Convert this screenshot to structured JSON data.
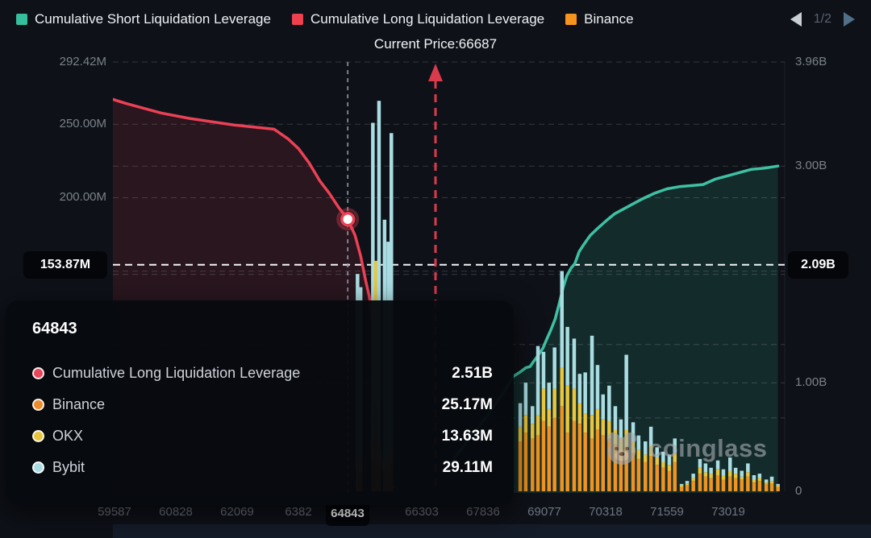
{
  "header": {
    "legend": [
      {
        "label": "Cumulative Short Liquidation Leverage",
        "color": "#35bd9c"
      },
      {
        "label": "Cumulative Long Liquidation Leverage",
        "color": "#ee404f"
      },
      {
        "label": "Binance",
        "color": "#f7941d"
      }
    ],
    "pagination": {
      "page": "1/2"
    },
    "current_price_label": "Current Price:66687"
  },
  "watermark": {
    "text": "coinglass"
  },
  "tooltip": {
    "title": "64843",
    "rows": [
      {
        "label": "Cumulative Long Liquidation Leverage",
        "value": "2.51B",
        "color": "#e8465a"
      },
      {
        "label": "Binance",
        "value": "25.17M",
        "color": "#ea8c2c"
      },
      {
        "label": "OKX",
        "value": "13.63M",
        "color": "#e7c53f"
      },
      {
        "label": "Bybit",
        "value": "29.11M",
        "color": "#a9dde2"
      }
    ]
  },
  "colors": {
    "background": "#0e1118",
    "grid": "rgba(255,255,255,0.16)",
    "price_line_white": "#f1f4f6",
    "hover_line": "#9aa2ab",
    "arrow_red": "#d93a4c",
    "pill_bg": "#04060a",
    "axis_text": "#7b8189"
  },
  "chart_data": {
    "type": "mixed: stacked bars (per-exchange liquidation leverage, left axis M) + cumulative lines (right axis B)",
    "x_ticks": [
      {
        "t": "59587"
      },
      {
        "t": "60828"
      },
      {
        "t": "62069"
      },
      {
        "t": "6382"
      },
      {
        "t": "64843",
        "hl": true
      },
      {
        "t": "66303"
      },
      {
        "t": "67836"
      },
      {
        "t": "69077"
      },
      {
        "t": "70318"
      },
      {
        "t": "71559"
      },
      {
        "t": "73019"
      }
    ],
    "left_axis": {
      "unit": "M",
      "max": 292.42,
      "labels": [
        {
          "text": "292.42M",
          "value": 292.42
        },
        {
          "text": "250.00M",
          "value": 250
        },
        {
          "text": "200.00M",
          "value": 200
        }
      ],
      "pill": {
        "text": "153.87M",
        "value": 153.87
      }
    },
    "right_axis": {
      "unit": "B",
      "max": 3.96,
      "labels": [
        {
          "text": "3.96B",
          "value": 3.96
        },
        {
          "text": "3.00B",
          "value": 3.0
        },
        {
          "text": "1.00B",
          "value": 1.0
        },
        {
          "text": "0",
          "value": 0
        }
      ],
      "pill": {
        "text": "2.09B",
        "value": 2.09
      }
    },
    "left_grid": [
      250,
      200,
      150,
      100,
      50
    ],
    "right_grid": [
      3.96,
      3.0,
      2.0,
      1.0
    ],
    "price_line": {
      "value_b": 2.09
    },
    "current_price": {
      "xi": 5.23
    },
    "hover": {
      "xi": 3.8,
      "label": "64843",
      "long_value_b": 2.51
    },
    "series": [
      {
        "name": "Cumulative Long Liquidation Leverage",
        "axis": "right",
        "color": "#ec4155",
        "fill": "rgba(236,65,85,0.12)",
        "points": [
          [
            -0.05,
            3.62
          ],
          [
            0.17,
            3.58
          ],
          [
            0.76,
            3.49
          ],
          [
            1.22,
            3.44
          ],
          [
            1.94,
            3.38
          ],
          [
            2.6,
            3.34
          ],
          [
            2.83,
            3.25
          ],
          [
            3.0,
            3.16
          ],
          [
            3.17,
            3.03
          ],
          [
            3.35,
            2.86
          ],
          [
            3.5,
            2.75
          ],
          [
            3.65,
            2.62
          ],
          [
            3.8,
            2.51
          ],
          [
            3.92,
            2.36
          ],
          [
            4.01,
            2.17
          ],
          [
            4.09,
            1.95
          ],
          [
            4.15,
            1.8
          ],
          [
            4.19,
            1.63
          ],
          [
            4.24,
            0.97
          ],
          [
            4.31,
            0.37
          ],
          [
            4.42,
            0.11
          ],
          [
            4.55,
            0.04
          ]
        ]
      },
      {
        "name": "Cumulative Short Liquidation Leverage",
        "axis": "right",
        "color": "#3ec1a2",
        "fill": "rgba(62,193,162,0.15)",
        "points": [
          [
            5.5,
            0.28
          ],
          [
            5.8,
            0.5
          ],
          [
            6.1,
            0.72
          ],
          [
            6.35,
            0.92
          ],
          [
            6.5,
            1.06
          ],
          [
            6.61,
            1.1
          ],
          [
            6.7,
            1.14
          ],
          [
            6.77,
            1.15
          ],
          [
            6.83,
            1.2
          ],
          [
            6.91,
            1.26
          ],
          [
            6.98,
            1.32
          ],
          [
            7.04,
            1.4
          ],
          [
            7.11,
            1.49
          ],
          [
            7.18,
            1.59
          ],
          [
            7.24,
            1.72
          ],
          [
            7.31,
            1.88
          ],
          [
            7.37,
            1.99
          ],
          [
            7.44,
            2.06
          ],
          [
            7.5,
            2.1
          ],
          [
            7.57,
            2.21
          ],
          [
            7.65,
            2.28
          ],
          [
            7.75,
            2.36
          ],
          [
            7.88,
            2.43
          ],
          [
            8.02,
            2.5
          ],
          [
            8.15,
            2.56
          ],
          [
            8.28,
            2.6
          ],
          [
            8.41,
            2.64
          ],
          [
            8.61,
            2.7
          ],
          [
            8.8,
            2.75
          ],
          [
            9.0,
            2.79
          ],
          [
            9.2,
            2.81
          ],
          [
            9.41,
            2.82
          ],
          [
            9.59,
            2.83
          ],
          [
            9.79,
            2.88
          ],
          [
            9.99,
            2.91
          ],
          [
            10.18,
            2.94
          ],
          [
            10.38,
            2.97
          ],
          [
            10.58,
            2.98
          ],
          [
            10.81,
            3.0
          ]
        ]
      }
    ],
    "bars": {
      "names": [
        "Binance",
        "OKX",
        "Bybit"
      ],
      "colors": [
        "#ef941f",
        "#e9c63c",
        "#a9dde2"
      ],
      "axis": "left",
      "data": [
        [
          3.96,
          15,
          10,
          123
        ],
        [
          4.01,
          12,
          8,
          119
        ],
        [
          4.21,
          20,
          12,
          219
        ],
        [
          4.26,
          60,
          97,
          0
        ],
        [
          4.31,
          18,
          14,
          234
        ],
        [
          4.4,
          15,
          10,
          160
        ],
        [
          4.46,
          12,
          10,
          148
        ],
        [
          4.51,
          18,
          12,
          214
        ],
        [
          6.61,
          34,
          10,
          16
        ],
        [
          6.7,
          40,
          12,
          22
        ],
        [
          6.81,
          36,
          10,
          12
        ],
        [
          6.9,
          38,
          14,
          47
        ],
        [
          6.99,
          48,
          22,
          25
        ],
        [
          7.08,
          44,
          12,
          18
        ],
        [
          7.17,
          50,
          20,
          28
        ],
        [
          7.29,
          58,
          26,
          66
        ],
        [
          7.38,
          40,
          32,
          40
        ],
        [
          7.49,
          48,
          22,
          34
        ],
        [
          7.58,
          46,
          14,
          20
        ],
        [
          7.67,
          40,
          13,
          28
        ],
        [
          7.78,
          36,
          16,
          54
        ],
        [
          7.87,
          42,
          14,
          30
        ],
        [
          7.96,
          38,
          11,
          17
        ],
        [
          8.06,
          36,
          12,
          24
        ],
        [
          8.16,
          32,
          10,
          16
        ],
        [
          8.25,
          28,
          8,
          13
        ],
        [
          8.34,
          30,
          12,
          51
        ],
        [
          8.45,
          26,
          8,
          13
        ],
        [
          8.54,
          22,
          6,
          10
        ],
        [
          8.65,
          20,
          5,
          9
        ],
        [
          8.74,
          24,
          7,
          13
        ],
        [
          8.84,
          18,
          5,
          7
        ],
        [
          8.94,
          16,
          4,
          7
        ],
        [
          9.04,
          14,
          4,
          7
        ],
        [
          9.13,
          20,
          6,
          10
        ],
        [
          9.24,
          3,
          1,
          1
        ],
        [
          9.33,
          4,
          1,
          2
        ],
        [
          9.43,
          7,
          2,
          3
        ],
        [
          9.54,
          12,
          4,
          6
        ],
        [
          9.63,
          10,
          3,
          6
        ],
        [
          9.72,
          9,
          3,
          4
        ],
        [
          9.83,
          11,
          4,
          6
        ],
        [
          9.92,
          8,
          3,
          4
        ],
        [
          10.03,
          10,
          4,
          9
        ],
        [
          10.12,
          9,
          3,
          4
        ],
        [
          10.22,
          8,
          2,
          4
        ],
        [
          10.32,
          10,
          3,
          6
        ],
        [
          10.42,
          6,
          2,
          3
        ],
        [
          10.51,
          7,
          2,
          3
        ],
        [
          10.62,
          5,
          1,
          2
        ],
        [
          10.71,
          5,
          2,
          3
        ],
        [
          10.81,
          3,
          1,
          1
        ]
      ]
    }
  }
}
